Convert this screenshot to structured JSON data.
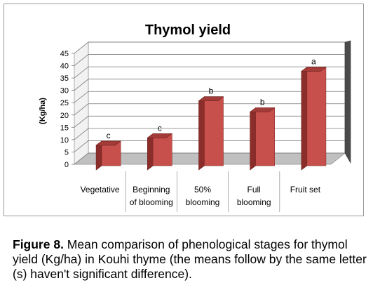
{
  "chart_data": {
    "type": "bar",
    "title": "Thymol yield",
    "ylabel": "(Kg/ha)",
    "xlabel": "",
    "ylim": [
      0,
      45
    ],
    "yticks": [
      0,
      5,
      10,
      15,
      20,
      25,
      30,
      35,
      40,
      45
    ],
    "grid": true,
    "legend": "none",
    "categories": [
      "Vegetative",
      "Beginning of blooming",
      "50% blooming",
      "Full blooming",
      "Fruit set"
    ],
    "category_lines": [
      [
        "Vegetative"
      ],
      [
        "Beginning",
        "of blooming"
      ],
      [
        "50%",
        "blooming"
      ],
      [
        "Full",
        "blooming"
      ],
      [
        "Fruit set"
      ]
    ],
    "values": [
      10,
      13,
      28,
      23.5,
      40
    ],
    "data_labels": [
      "c",
      "c",
      "b",
      "b",
      "a"
    ],
    "colors": {
      "bar_front": "#c8504c",
      "bar_side": "#8b2d2a",
      "bar_top": "#a33c38",
      "wall": "#ffffff",
      "floor": "#c0c0c0"
    }
  },
  "caption": {
    "label": "Figure 8.",
    "text": " Mean comparison of phenological stages for thymol yield (Kg/ha) in Kouhi thyme (the means follow by the same letter (s) haven't significant difference)."
  }
}
